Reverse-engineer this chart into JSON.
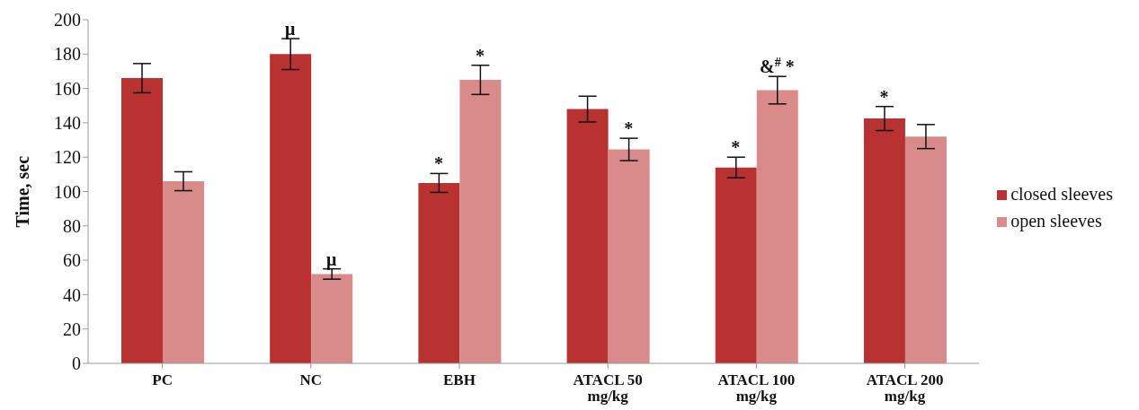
{
  "chart_data": {
    "type": "bar",
    "ylabel": "Time, sec",
    "categories": [
      "PC",
      "NC",
      "EBH",
      "ATACL 50 mg/kg",
      "ATACL 100 mg/kg",
      "ATACL 200 mg/kg"
    ],
    "series": [
      {
        "name": "closed sleeves",
        "color": "#b83232",
        "values": [
          166,
          180,
          105,
          148,
          114,
          142.5
        ],
        "errors": [
          8.5,
          9,
          5.5,
          7.5,
          6,
          7
        ]
      },
      {
        "name": "open sleeves",
        "color": "#d98a8a",
        "values": [
          106,
          52,
          165,
          124.5,
          159,
          132
        ],
        "errors": [
          5.5,
          3,
          8.5,
          6.5,
          8,
          7
        ]
      }
    ],
    "ylim": [
      0,
      200
    ],
    "yticks": [
      0,
      20,
      40,
      60,
      80,
      100,
      120,
      140,
      160,
      180,
      200
    ],
    "annotations": [
      {
        "text": "μ",
        "x": "NC",
        "y": 180
      },
      {
        "text": "μ",
        "x": "NC",
        "y": 52
      },
      {
        "text": "*",
        "x": "EBH",
        "y": 105
      },
      {
        "text": "*",
        "x": "EBH",
        "y": 165
      },
      {
        "text": "*",
        "x": "ATACL 50 mg/kg",
        "y": 124.5
      },
      {
        "text": "*",
        "x": "ATACL 100 mg/kg",
        "y": 114
      },
      {
        "text": "&$^{#}$ *",
        "x": "ATACL 100 mg/kg",
        "y": 159
      },
      {
        "text": "*",
        "x": "ATACL 200 mg/kg",
        "y": 142.5
      }
    ],
    "grid": false,
    "legend": "right"
  }
}
